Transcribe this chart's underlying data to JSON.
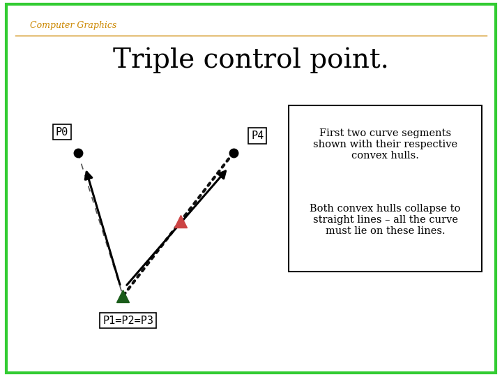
{
  "title": "Triple control point.",
  "header_text": "Computer Graphics",
  "header_color": "#CC8800",
  "background_color": "#FFFFFF",
  "border_color": "#33CC33",
  "border_linewidth": 3,
  "P0": [
    0.155,
    0.595
  ],
  "P4": [
    0.465,
    0.595
  ],
  "P123": [
    0.245,
    0.215
  ],
  "text_box1": "First two curve segments\nshown with their respective\nconvex hulls.",
  "text_box2": "Both convex hulls collapse to\nstraight lines – all the curve\nmust lie on these lines.",
  "red_triangle_color": "#CC4444",
  "green_triangle_color": "#1A5C1A",
  "arrow_color": "#000000",
  "dashed_line_color": "#555555",
  "dotted_line_color": "#111111"
}
